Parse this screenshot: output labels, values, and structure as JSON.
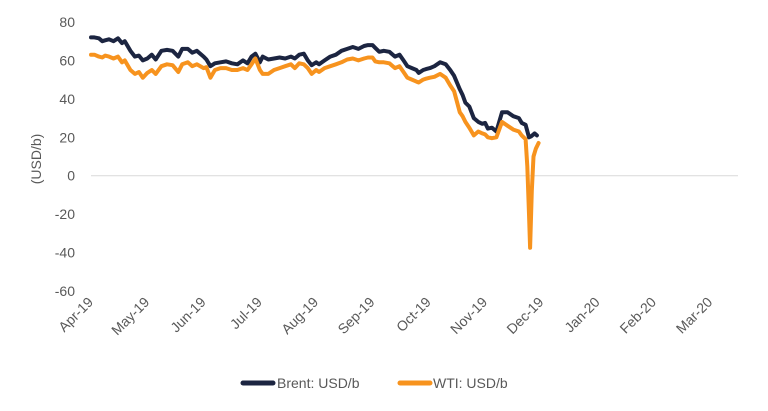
{
  "chart_data": {
    "type": "line",
    "ylabel": "(USD/b)",
    "ylim": [
      -60,
      80
    ],
    "yticks": [
      -60,
      -40,
      -20,
      0,
      20,
      40,
      60,
      80
    ],
    "grid": false,
    "legend_position": "bottom",
    "x_tick_labels": [
      "Apr-19",
      "May-19",
      "Jun-19",
      "Jul-19",
      "Aug-19",
      "Sep-19",
      "Oct-19",
      "Nov-19",
      "Dec-19",
      "Jan-20",
      "Feb-20",
      "Mar-20"
    ],
    "series": [
      {
        "name": "Brent: USD/b",
        "color": "#1c2541",
        "points": [
          [
            0,
            72
          ],
          [
            0.06,
            72
          ],
          [
            0.14,
            71.5
          ],
          [
            0.2,
            70
          ],
          [
            0.25,
            70.5
          ],
          [
            0.32,
            71
          ],
          [
            0.4,
            70
          ],
          [
            0.48,
            71.5
          ],
          [
            0.55,
            69
          ],
          [
            0.6,
            70
          ],
          [
            0.7,
            65
          ],
          [
            0.78,
            62
          ],
          [
            0.85,
            62.5
          ],
          [
            0.92,
            60
          ],
          [
            1.0,
            61
          ],
          [
            1.08,
            63
          ],
          [
            1.15,
            60.5
          ],
          [
            1.25,
            65
          ],
          [
            1.35,
            65.5
          ],
          [
            1.45,
            65
          ],
          [
            1.55,
            62
          ],
          [
            1.62,
            66
          ],
          [
            1.72,
            66
          ],
          [
            1.8,
            64
          ],
          [
            1.88,
            65
          ],
          [
            2.0,
            62
          ],
          [
            2.05,
            60.5
          ],
          [
            2.12,
            57
          ],
          [
            2.2,
            58.5
          ],
          [
            2.3,
            59
          ],
          [
            2.4,
            59.5
          ],
          [
            2.5,
            58.5
          ],
          [
            2.6,
            58
          ],
          [
            2.7,
            60
          ],
          [
            2.78,
            58.5
          ],
          [
            2.85,
            62
          ],
          [
            2.92,
            63.5
          ],
          [
            3.0,
            59
          ],
          [
            3.05,
            62
          ],
          [
            3.15,
            60.5
          ],
          [
            3.25,
            61
          ],
          [
            3.35,
            61.5
          ],
          [
            3.45,
            61
          ],
          [
            3.55,
            62
          ],
          [
            3.62,
            61
          ],
          [
            3.7,
            63
          ],
          [
            3.78,
            63.5
          ],
          [
            3.85,
            60
          ],
          [
            3.92,
            57.5
          ],
          [
            4.0,
            59
          ],
          [
            4.05,
            58
          ],
          [
            4.15,
            60
          ],
          [
            4.25,
            62
          ],
          [
            4.35,
            63
          ],
          [
            4.45,
            65
          ],
          [
            4.55,
            66
          ],
          [
            4.65,
            67
          ],
          [
            4.75,
            66
          ],
          [
            4.85,
            67.5
          ],
          [
            4.92,
            68
          ],
          [
            5.0,
            68
          ],
          [
            5.05,
            66.5
          ],
          [
            5.12,
            64.5
          ],
          [
            5.2,
            65
          ],
          [
            5.3,
            64.5
          ],
          [
            5.4,
            62
          ],
          [
            5.48,
            63
          ],
          [
            5.55,
            60
          ],
          [
            5.62,
            57
          ],
          [
            5.7,
            56
          ],
          [
            5.78,
            55
          ],
          [
            5.82,
            53.5
          ],
          [
            5.9,
            55
          ],
          [
            5.95,
            55.5
          ],
          [
            6.02,
            56
          ],
          [
            6.1,
            57
          ],
          [
            6.2,
            59
          ],
          [
            6.3,
            58
          ],
          [
            6.38,
            55
          ],
          [
            6.45,
            52
          ],
          [
            6.55,
            45
          ],
          [
            6.6,
            42
          ],
          [
            6.65,
            38
          ],
          [
            6.72,
            36
          ],
          [
            6.8,
            30
          ],
          [
            6.88,
            28
          ],
          [
            6.95,
            27
          ],
          [
            7.0,
            27.5
          ],
          [
            7.05,
            24.5
          ],
          [
            7.12,
            25
          ],
          [
            7.2,
            23
          ],
          [
            7.3,
            33
          ],
          [
            7.4,
            33
          ],
          [
            7.5,
            31
          ],
          [
            7.6,
            30
          ],
          [
            7.65,
            27.5
          ],
          [
            7.72,
            26.5
          ],
          [
            7.78,
            20
          ],
          [
            7.82,
            20.5
          ],
          [
            7.88,
            22
          ],
          [
            7.92,
            21
          ]
        ]
      },
      {
        "name": "WTI: USD/b",
        "color": "#f7931e",
        "points": [
          [
            0,
            63
          ],
          [
            0.06,
            63
          ],
          [
            0.14,
            62
          ],
          [
            0.2,
            61.5
          ],
          [
            0.25,
            62.5
          ],
          [
            0.32,
            62
          ],
          [
            0.4,
            61
          ],
          [
            0.48,
            62
          ],
          [
            0.55,
            59
          ],
          [
            0.6,
            60
          ],
          [
            0.7,
            55
          ],
          [
            0.78,
            53
          ],
          [
            0.85,
            54
          ],
          [
            0.92,
            51
          ],
          [
            1.0,
            53.5
          ],
          [
            1.08,
            55
          ],
          [
            1.15,
            53
          ],
          [
            1.25,
            57
          ],
          [
            1.35,
            58
          ],
          [
            1.45,
            57.5
          ],
          [
            1.55,
            54
          ],
          [
            1.62,
            58
          ],
          [
            1.72,
            59
          ],
          [
            1.8,
            57
          ],
          [
            1.88,
            58
          ],
          [
            2.0,
            56
          ],
          [
            2.05,
            56.5
          ],
          [
            2.12,
            51
          ],
          [
            2.2,
            55
          ],
          [
            2.3,
            56
          ],
          [
            2.4,
            56
          ],
          [
            2.5,
            55
          ],
          [
            2.6,
            55
          ],
          [
            2.7,
            56
          ],
          [
            2.78,
            55
          ],
          [
            2.85,
            58
          ],
          [
            2.92,
            61
          ],
          [
            3.0,
            55
          ],
          [
            3.05,
            53
          ],
          [
            3.15,
            53
          ],
          [
            3.25,
            55
          ],
          [
            3.35,
            56
          ],
          [
            3.45,
            57
          ],
          [
            3.55,
            58
          ],
          [
            3.62,
            56
          ],
          [
            3.7,
            58.5
          ],
          [
            3.78,
            58
          ],
          [
            3.85,
            56
          ],
          [
            3.92,
            53
          ],
          [
            4.0,
            55
          ],
          [
            4.05,
            54
          ],
          [
            4.15,
            56
          ],
          [
            4.25,
            57
          ],
          [
            4.35,
            58
          ],
          [
            4.45,
            59
          ],
          [
            4.55,
            60.5
          ],
          [
            4.65,
            61
          ],
          [
            4.75,
            60
          ],
          [
            4.85,
            61
          ],
          [
            4.92,
            61.5
          ],
          [
            5.0,
            61.5
          ],
          [
            5.05,
            59.5
          ],
          [
            5.12,
            59
          ],
          [
            5.2,
            59
          ],
          [
            5.3,
            58.5
          ],
          [
            5.4,
            56
          ],
          [
            5.48,
            57
          ],
          [
            5.55,
            54
          ],
          [
            5.62,
            51
          ],
          [
            5.7,
            50
          ],
          [
            5.78,
            49
          ],
          [
            5.82,
            48.5
          ],
          [
            5.9,
            50
          ],
          [
            5.95,
            50.5
          ],
          [
            6.02,
            51
          ],
          [
            6.1,
            51.5
          ],
          [
            6.2,
            53
          ],
          [
            6.3,
            51
          ],
          [
            6.38,
            47
          ],
          [
            6.45,
            44
          ],
          [
            6.55,
            33
          ],
          [
            6.6,
            31
          ],
          [
            6.65,
            28
          ],
          [
            6.72,
            25
          ],
          [
            6.8,
            21
          ],
          [
            6.88,
            23
          ],
          [
            6.95,
            22
          ],
          [
            7.0,
            21.5
          ],
          [
            7.05,
            20
          ],
          [
            7.12,
            19.5
          ],
          [
            7.2,
            20
          ],
          [
            7.3,
            28
          ],
          [
            7.4,
            26
          ],
          [
            7.5,
            24
          ],
          [
            7.6,
            23
          ],
          [
            7.65,
            21
          ],
          [
            7.72,
            19
          ],
          [
            7.75,
            5
          ],
          [
            7.78,
            -20
          ],
          [
            7.8,
            -37.5
          ],
          [
            7.83,
            -8
          ],
          [
            7.86,
            10
          ],
          [
            7.9,
            14
          ],
          [
            7.95,
            17
          ]
        ]
      }
    ]
  }
}
